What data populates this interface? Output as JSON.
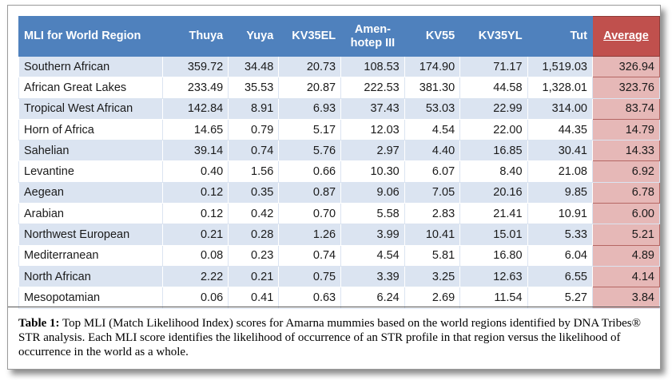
{
  "table": {
    "headers": {
      "region": "MLI for World Region",
      "thuya": "Thuya",
      "yuya": "Yuya",
      "kv35el": "KV35EL",
      "amen_line1": "Amen-",
      "amen_line2": "hotep III",
      "kv55": "KV55",
      "kv35yl": "KV35YL",
      "tut": "Tut",
      "average": "Average"
    },
    "rows": [
      {
        "region": "Southern African",
        "thuya": "359.72",
        "yuya": "34.48",
        "kv35el": "20.73",
        "amen": "108.53",
        "kv55": "174.90",
        "kv35yl": "71.17",
        "tut": "1,519.03",
        "avg": "326.94"
      },
      {
        "region": "African Great Lakes",
        "thuya": "233.49",
        "yuya": "35.53",
        "kv35el": "20.87",
        "amen": "222.53",
        "kv55": "381.30",
        "kv35yl": "44.58",
        "tut": "1,328.01",
        "avg": "323.76"
      },
      {
        "region": "Tropical West African",
        "thuya": "142.84",
        "yuya": "8.91",
        "kv35el": "6.93",
        "amen": "37.43",
        "kv55": "53.03",
        "kv35yl": "22.99",
        "tut": "314.00",
        "avg": "83.74"
      },
      {
        "region": "Horn of Africa",
        "thuya": "14.65",
        "yuya": "0.79",
        "kv35el": "5.17",
        "amen": "12.03",
        "kv55": "4.54",
        "kv35yl": "22.00",
        "tut": "44.35",
        "avg": "14.79"
      },
      {
        "region": "Sahelian",
        "thuya": "39.14",
        "yuya": "0.74",
        "kv35el": "5.76",
        "amen": "2.97",
        "kv55": "4.40",
        "kv35yl": "16.85",
        "tut": "30.41",
        "avg": "14.33"
      },
      {
        "region": "Levantine",
        "thuya": "0.40",
        "yuya": "1.56",
        "kv35el": "0.66",
        "amen": "10.30",
        "kv55": "6.07",
        "kv35yl": "8.40",
        "tut": "21.08",
        "avg": "6.92"
      },
      {
        "region": "Aegean",
        "thuya": "0.12",
        "yuya": "0.35",
        "kv35el": "0.87",
        "amen": "9.06",
        "kv55": "7.05",
        "kv35yl": "20.16",
        "tut": "9.85",
        "avg": "6.78"
      },
      {
        "region": "Arabian",
        "thuya": "0.12",
        "yuya": "0.42",
        "kv35el": "0.70",
        "amen": "5.58",
        "kv55": "2.83",
        "kv35yl": "21.41",
        "tut": "10.91",
        "avg": "6.00"
      },
      {
        "region": "Northwest European",
        "thuya": "0.21",
        "yuya": "0.28",
        "kv35el": "1.26",
        "amen": "3.99",
        "kv55": "10.41",
        "kv35yl": "15.01",
        "tut": "5.33",
        "avg": "5.21"
      },
      {
        "region": "Mediterranean",
        "thuya": "0.08",
        "yuya": "0.23",
        "kv35el": "0.74",
        "amen": "4.54",
        "kv55": "5.81",
        "kv35yl": "16.80",
        "tut": "6.04",
        "avg": "4.89"
      },
      {
        "region": "North African",
        "thuya": "2.22",
        "yuya": "0.21",
        "kv35el": "0.75",
        "amen": "3.39",
        "kv55": "3.25",
        "kv35yl": "12.63",
        "tut": "6.55",
        "avg": "4.14"
      },
      {
        "region": "Mesopotamian",
        "thuya": "0.06",
        "yuya": "0.41",
        "kv35el": "0.63",
        "amen": "6.24",
        "kv55": "2.69",
        "kv35yl": "11.54",
        "tut": "5.27",
        "avg": "3.84"
      }
    ]
  },
  "caption": {
    "label": "Table 1:",
    "text": " Top MLI (Match Likelihood Index) scores for Amarna mummies based on the world regions identified by DNA Tribes® STR analysis. Each MLI score identifies the likelihood of occurrence of an STR profile in that region versus the likelihood of occurrence in the world as a whole."
  },
  "colors": {
    "header_blue": "#4f81bd",
    "band_blue": "#dbe4f1",
    "average_header_red": "#c0504d",
    "average_cell_pink": "#e6b8b7"
  }
}
